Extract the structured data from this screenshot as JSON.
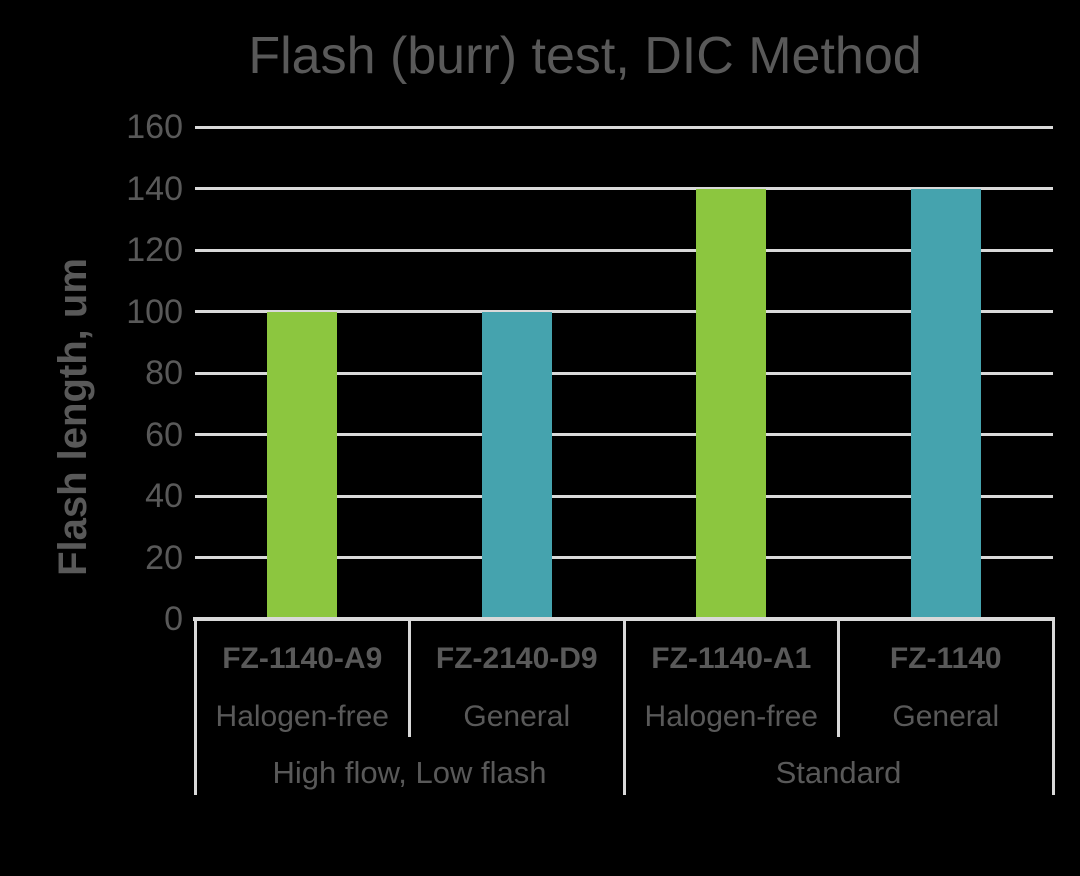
{
  "chart_data": {
    "type": "bar",
    "title": "Flash (burr) test, DIC Method",
    "xlabel": "",
    "ylabel": "Flash length, um",
    "ylim": [
      0,
      160
    ],
    "ytick_step": 20,
    "yticks": [
      0,
      20,
      40,
      60,
      80,
      100,
      120,
      140,
      160
    ],
    "grid": "horizontal",
    "legend": "none",
    "categories": [
      {
        "name": "FZ-1140-A9",
        "subtitle": "Halogen-free",
        "group": "High flow, Low flash",
        "value": 100,
        "color": "#8CC63F"
      },
      {
        "name": "FZ-2140-D9",
        "subtitle": "General",
        "group": "High flow, Low flash",
        "value": 100,
        "color": "#45A3AE"
      },
      {
        "name": "FZ-1140-A1",
        "subtitle": "Halogen-free",
        "group": "Standard",
        "value": 140,
        "color": "#8CC63F"
      },
      {
        "name": "FZ-1140",
        "subtitle": "General",
        "group": "Standard",
        "value": 140,
        "color": "#45A3AE"
      }
    ],
    "groups": [
      {
        "label": "High flow, Low flash",
        "span": 2
      },
      {
        "label": "Standard",
        "span": 2
      }
    ],
    "colors": {
      "bar_green": "#8CC63F",
      "bar_teal": "#45A3AE",
      "background": "#000000",
      "text": "#595959",
      "gridline": "#D9D9D9"
    }
  }
}
